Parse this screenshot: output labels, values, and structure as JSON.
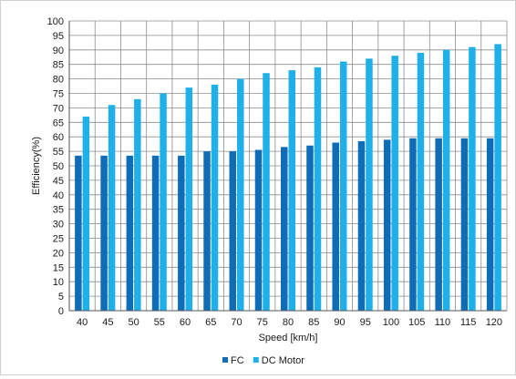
{
  "chart_data": {
    "type": "bar",
    "xlabel": "Speed [km/h]",
    "ylabel": "Efficiency(%)",
    "categories": [
      "40",
      "45",
      "50",
      "55",
      "60",
      "65",
      "70",
      "75",
      "80",
      "85",
      "90",
      "95",
      "100",
      "105",
      "110",
      "115",
      "120"
    ],
    "series": [
      {
        "name": "FC",
        "color": "#0f6cb6",
        "values": [
          53.5,
          53.5,
          53.5,
          53.5,
          53.5,
          55,
          55,
          55.5,
          56.5,
          57,
          58,
          58.5,
          59,
          59.5,
          59.5,
          59.5,
          59.5
        ]
      },
      {
        "name": "DC Motor",
        "color": "#1fb0ea",
        "values": [
          67,
          71,
          73,
          75,
          77,
          78,
          80,
          82,
          83,
          84,
          86,
          87,
          88,
          89,
          90,
          91,
          92
        ]
      }
    ],
    "yticks": [
      "0",
      "5",
      "10",
      "15",
      "20",
      "25",
      "30",
      "35",
      "40",
      "45",
      "50",
      "55",
      "60",
      "65",
      "70",
      "75",
      "80",
      "85",
      "90",
      "95",
      "100"
    ],
    "ylim": [
      0,
      100
    ],
    "grid": true,
    "legend_position": "bottom"
  }
}
